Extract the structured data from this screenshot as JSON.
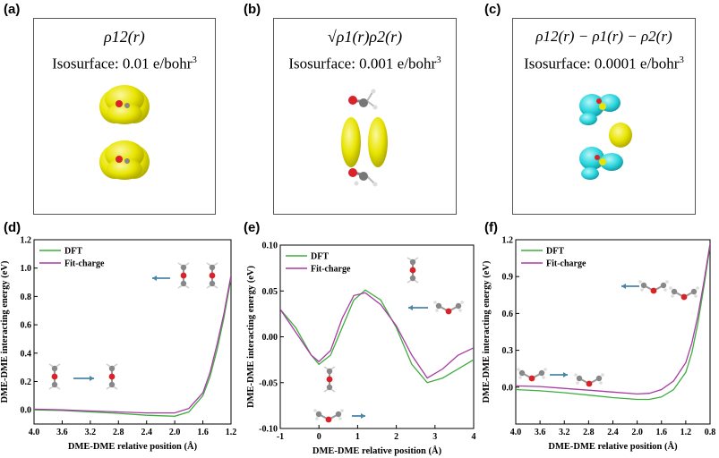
{
  "figure": {
    "top_panels": [
      {
        "label": "(a)",
        "formula": "ρ12(r)",
        "isosurface": "Isosurface: 0.01 e/bohr",
        "unit_exp": "3"
      },
      {
        "label": "(b)",
        "formula": "√ρ1(r)ρ2(r)",
        "isosurface": "Isosurface: 0.001 e/bohr",
        "unit_exp": "3"
      },
      {
        "label": "(c)",
        "formula": "ρ12(r) − ρ1(r) − ρ2(r)",
        "isosurface": "Isosurface: 0.0001 e/bohr",
        "unit_exp": "3"
      }
    ],
    "colors": {
      "dft": "#3fae3f",
      "fit": "#a83ca3",
      "density": "#e8e400",
      "diff_cyan": "#28d4dc",
      "oxygen": "#d9222a",
      "carbon": "#888888",
      "arrow": "#4a86a8"
    }
  },
  "chart_data": [
    {
      "type": "line",
      "label": "(d)",
      "xlabel": "DME-DME relative position (Å)",
      "ylabel": "DME-DME interacting energy (eV)",
      "xlim": [
        4.0,
        1.2
      ],
      "ylim": [
        -0.1,
        1.2
      ],
      "xticks": [
        "4.0",
        "3.6",
        "3.2",
        "2.8",
        "2.4",
        "2.0",
        "1.6",
        "1.2"
      ],
      "yticks": [
        "0.0",
        "0.2",
        "0.4",
        "0.6",
        "0.8",
        "1.0",
        "1.2"
      ],
      "legend": [
        "DFT",
        "Fit-charge"
      ],
      "series": [
        {
          "name": "DFT",
          "x": [
            4.0,
            3.6,
            3.2,
            2.8,
            2.4,
            2.0,
            1.8,
            1.6,
            1.5,
            1.4,
            1.3,
            1.2
          ],
          "y": [
            0.0,
            -0.005,
            -0.015,
            -0.025,
            -0.038,
            -0.045,
            -0.015,
            0.1,
            0.23,
            0.42,
            0.65,
            0.93
          ]
        },
        {
          "name": "Fit-charge",
          "x": [
            4.0,
            3.6,
            3.2,
            2.8,
            2.4,
            2.0,
            1.8,
            1.6,
            1.5,
            1.4,
            1.3,
            1.2
          ],
          "y": [
            0.005,
            0.0,
            -0.008,
            -0.015,
            -0.022,
            -0.022,
            0.01,
            0.12,
            0.26,
            0.46,
            0.68,
            0.95
          ]
        }
      ]
    },
    {
      "type": "line",
      "label": "(e)",
      "xlabel": "DME-DME relative position (Å)",
      "ylabel": "DME-DME interacting energy (eV)",
      "xlim": [
        -1,
        4
      ],
      "ylim": [
        -0.1,
        0.1
      ],
      "xticks": [
        "-1",
        "0",
        "1",
        "2",
        "3",
        "4"
      ],
      "yticks": [
        "-0.10",
        "-0.05",
        "0.00",
        "0.05",
        "0.10"
      ],
      "legend": [
        "DFT",
        "Fit-charge"
      ],
      "series": [
        {
          "name": "DFT",
          "x": [
            -1,
            -0.6,
            -0.2,
            0,
            0.3,
            0.6,
            0.9,
            1.2,
            1.6,
            2.0,
            2.4,
            2.8,
            3.2,
            3.6,
            4.0
          ],
          "y": [
            0.03,
            0.01,
            -0.02,
            -0.03,
            -0.02,
            0.01,
            0.04,
            0.051,
            0.04,
            0.01,
            -0.03,
            -0.05,
            -0.045,
            -0.035,
            -0.025
          ]
        },
        {
          "name": "Fit-charge",
          "x": [
            -1,
            -0.6,
            -0.2,
            0,
            0.3,
            0.6,
            0.9,
            1.2,
            1.6,
            2.0,
            2.4,
            2.8,
            3.2,
            3.6,
            4.0
          ],
          "y": [
            0.03,
            0.005,
            -0.02,
            -0.027,
            -0.015,
            0.02,
            0.045,
            0.048,
            0.035,
            0.012,
            -0.02,
            -0.045,
            -0.035,
            -0.02,
            -0.012
          ]
        }
      ]
    },
    {
      "type": "line",
      "label": "(f)",
      "xlabel": "DME-DME relative position (Å)",
      "ylabel": "DME-DME interacting energy (eV)",
      "xlim": [
        4.0,
        0.8
      ],
      "ylim": [
        -0.3,
        1.2
      ],
      "xticks": [
        "4.0",
        "3.6",
        "3.2",
        "2.8",
        "2.4",
        "2.0",
        "1.6",
        "1.2",
        "0.8"
      ],
      "yticks": [
        "0.0",
        "0.3",
        "0.6",
        "0.9",
        "1.2"
      ],
      "legend": [
        "DFT",
        "Fit-charge"
      ],
      "series": [
        {
          "name": "DFT",
          "x": [
            4.0,
            3.6,
            3.2,
            2.8,
            2.4,
            2.0,
            1.8,
            1.6,
            1.4,
            1.2,
            1.1,
            1.0,
            0.9,
            0.8
          ],
          "y": [
            -0.02,
            -0.03,
            -0.045,
            -0.065,
            -0.085,
            -0.1,
            -0.1,
            -0.08,
            -0.02,
            0.12,
            0.28,
            0.52,
            0.82,
            1.15
          ]
        },
        {
          "name": "Fit-charge",
          "x": [
            4.0,
            3.6,
            3.2,
            2.8,
            2.4,
            2.0,
            1.8,
            1.6,
            1.4,
            1.2,
            1.1,
            1.0,
            0.9,
            0.8
          ],
          "y": [
            0.01,
            0.005,
            -0.01,
            -0.025,
            -0.04,
            -0.055,
            -0.05,
            -0.02,
            0.05,
            0.2,
            0.36,
            0.58,
            0.86,
            1.17
          ]
        }
      ]
    }
  ]
}
